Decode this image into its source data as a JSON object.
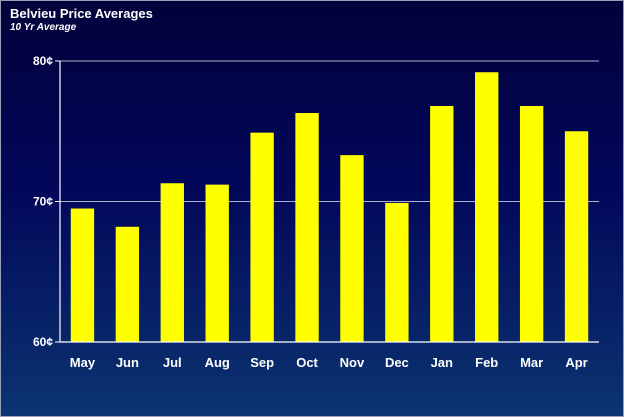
{
  "chart_data": {
    "type": "bar",
    "title": "Belvieu Price Averages",
    "subtitle": "10 Yr Average",
    "xlabel": "",
    "ylabel": "",
    "categories": [
      "May",
      "Jun",
      "Jul",
      "Aug",
      "Sep",
      "Oct",
      "Nov",
      "Dec",
      "Jan",
      "Feb",
      "Mar",
      "Apr"
    ],
    "values": [
      69.5,
      68.2,
      71.3,
      71.2,
      74.9,
      76.3,
      73.3,
      69.9,
      76.8,
      79.2,
      76.8,
      75.0
    ],
    "ylim": [
      60,
      80
    ],
    "yticks": [
      {
        "value": 60,
        "label": "60¢"
      },
      {
        "value": 70,
        "label": "70¢"
      },
      {
        "value": 80,
        "label": "80¢"
      }
    ],
    "grid": true,
    "legend": "none",
    "colors": {
      "bar": "#ffff00",
      "axis": "#ffffff",
      "grid": "#c8cce0",
      "background_top": "#01013a",
      "background_bottom": "#0b3470"
    }
  }
}
